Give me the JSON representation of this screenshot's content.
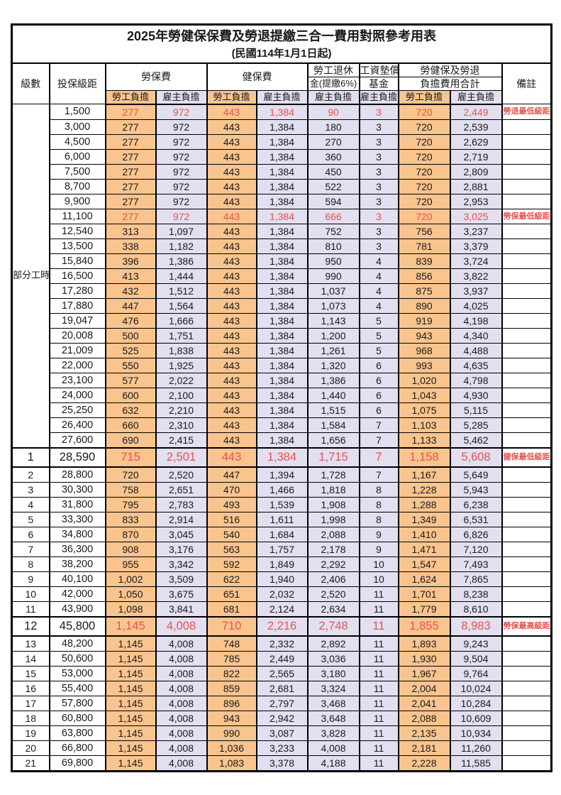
{
  "title": "2025年勞健保保費及勞退提繳三合一費用對照參考用表",
  "subtitle": "(民國114年1月1日起)",
  "header": {
    "level": "級數",
    "bracket": "投保級距",
    "labor_ins": "勞保費",
    "health_ins": "健保費",
    "pension_line1": "勞工退休",
    "pension_line2": "金(提繳6%)",
    "wage_fund_line1": "工資墊償",
    "wage_fund_line2": "基金",
    "total_line1": "勞健保及勞退",
    "total_line2": "負擔費用合計",
    "note": "備註",
    "employee": "勞工負擔",
    "employer": "雇主負擔"
  },
  "part_time": {
    "label": "部分工時",
    "span": 23
  },
  "colors": {
    "employee_bg": "#FAC48E",
    "employer_bg": "#E1DFF0",
    "highlight_text": "#E8544E",
    "border": "#000000"
  },
  "rows": [
    {
      "level": "",
      "bracket": "1,500",
      "li_emp": "277",
      "li_er": "972",
      "hi_emp": "443",
      "hi_er": "1,384",
      "pension_er": "90",
      "fund_er": "3",
      "total_emp": "720",
      "total_er": "2,449",
      "note": "勞退最低級距",
      "red": true
    },
    {
      "level": "",
      "bracket": "3,000",
      "li_emp": "277",
      "li_er": "972",
      "hi_emp": "443",
      "hi_er": "1,384",
      "pension_er": "180",
      "fund_er": "3",
      "total_emp": "720",
      "total_er": "2,539",
      "note": ""
    },
    {
      "level": "",
      "bracket": "4,500",
      "li_emp": "277",
      "li_er": "972",
      "hi_emp": "443",
      "hi_er": "1,384",
      "pension_er": "270",
      "fund_er": "3",
      "total_emp": "720",
      "total_er": "2,629",
      "note": ""
    },
    {
      "level": "",
      "bracket": "6,000",
      "li_emp": "277",
      "li_er": "972",
      "hi_emp": "443",
      "hi_er": "1,384",
      "pension_er": "360",
      "fund_er": "3",
      "total_emp": "720",
      "total_er": "2,719",
      "note": ""
    },
    {
      "level": "",
      "bracket": "7,500",
      "li_emp": "277",
      "li_er": "972",
      "hi_emp": "443",
      "hi_er": "1,384",
      "pension_er": "450",
      "fund_er": "3",
      "total_emp": "720",
      "total_er": "2,809",
      "note": ""
    },
    {
      "level": "",
      "bracket": "8,700",
      "li_emp": "277",
      "li_er": "972",
      "hi_emp": "443",
      "hi_er": "1,384",
      "pension_er": "522",
      "fund_er": "3",
      "total_emp": "720",
      "total_er": "2,881",
      "note": ""
    },
    {
      "level": "",
      "bracket": "9,900",
      "li_emp": "277",
      "li_er": "972",
      "hi_emp": "443",
      "hi_er": "1,384",
      "pension_er": "594",
      "fund_er": "3",
      "total_emp": "720",
      "total_er": "2,953",
      "note": ""
    },
    {
      "level": "",
      "bracket": "11,100",
      "li_emp": "277",
      "li_er": "972",
      "hi_emp": "443",
      "hi_er": "1,384",
      "pension_er": "666",
      "fund_er": "3",
      "total_emp": "720",
      "total_er": "3,025",
      "note": "勞保最低級距",
      "red": true
    },
    {
      "level": "",
      "bracket": "12,540",
      "li_emp": "313",
      "li_er": "1,097",
      "hi_emp": "443",
      "hi_er": "1,384",
      "pension_er": "752",
      "fund_er": "3",
      "total_emp": "756",
      "total_er": "3,237",
      "note": ""
    },
    {
      "level": "",
      "bracket": "13,500",
      "li_emp": "338",
      "li_er": "1,182",
      "hi_emp": "443",
      "hi_er": "1,384",
      "pension_er": "810",
      "fund_er": "3",
      "total_emp": "781",
      "total_er": "3,379",
      "note": ""
    },
    {
      "level": "",
      "bracket": "15,840",
      "li_emp": "396",
      "li_er": "1,386",
      "hi_emp": "443",
      "hi_er": "1,384",
      "pension_er": "950",
      "fund_er": "4",
      "total_emp": "839",
      "total_er": "3,724",
      "note": ""
    },
    {
      "level": "",
      "bracket": "16,500",
      "li_emp": "413",
      "li_er": "1,444",
      "hi_emp": "443",
      "hi_er": "1,384",
      "pension_er": "990",
      "fund_er": "4",
      "total_emp": "856",
      "total_er": "3,822",
      "note": ""
    },
    {
      "level": "",
      "bracket": "17,280",
      "li_emp": "432",
      "li_er": "1,512",
      "hi_emp": "443",
      "hi_er": "1,384",
      "pension_er": "1,037",
      "fund_er": "4",
      "total_emp": "875",
      "total_er": "3,937",
      "note": ""
    },
    {
      "level": "",
      "bracket": "17,880",
      "li_emp": "447",
      "li_er": "1,564",
      "hi_emp": "443",
      "hi_er": "1,384",
      "pension_er": "1,073",
      "fund_er": "4",
      "total_emp": "890",
      "total_er": "4,025",
      "note": ""
    },
    {
      "level": "",
      "bracket": "19,047",
      "li_emp": "476",
      "li_er": "1,666",
      "hi_emp": "443",
      "hi_er": "1,384",
      "pension_er": "1,143",
      "fund_er": "5",
      "total_emp": "919",
      "total_er": "4,198",
      "note": ""
    },
    {
      "level": "",
      "bracket": "20,008",
      "li_emp": "500",
      "li_er": "1,751",
      "hi_emp": "443",
      "hi_er": "1,384",
      "pension_er": "1,200",
      "fund_er": "5",
      "total_emp": "943",
      "total_er": "4,340",
      "note": ""
    },
    {
      "level": "",
      "bracket": "21,009",
      "li_emp": "525",
      "li_er": "1,838",
      "hi_emp": "443",
      "hi_er": "1,384",
      "pension_er": "1,261",
      "fund_er": "5",
      "total_emp": "968",
      "total_er": "4,488",
      "note": ""
    },
    {
      "level": "",
      "bracket": "22,000",
      "li_emp": "550",
      "li_er": "1,925",
      "hi_emp": "443",
      "hi_er": "1,384",
      "pension_er": "1,320",
      "fund_er": "6",
      "total_emp": "993",
      "total_er": "4,635",
      "note": ""
    },
    {
      "level": "",
      "bracket": "23,100",
      "li_emp": "577",
      "li_er": "2,022",
      "hi_emp": "443",
      "hi_er": "1,384",
      "pension_er": "1,386",
      "fund_er": "6",
      "total_emp": "1,020",
      "total_er": "4,798",
      "note": ""
    },
    {
      "level": "",
      "bracket": "24,000",
      "li_emp": "600",
      "li_er": "2,100",
      "hi_emp": "443",
      "hi_er": "1,384",
      "pension_er": "1,440",
      "fund_er": "6",
      "total_emp": "1,043",
      "total_er": "4,930",
      "note": ""
    },
    {
      "level": "",
      "bracket": "25,250",
      "li_emp": "632",
      "li_er": "2,210",
      "hi_emp": "443",
      "hi_er": "1,384",
      "pension_er": "1,515",
      "fund_er": "6",
      "total_emp": "1,075",
      "total_er": "5,115",
      "note": ""
    },
    {
      "level": "",
      "bracket": "26,400",
      "li_emp": "660",
      "li_er": "2,310",
      "hi_emp": "443",
      "hi_er": "1,384",
      "pension_er": "1,584",
      "fund_er": "7",
      "total_emp": "1,103",
      "total_er": "5,285",
      "note": ""
    },
    {
      "level": "",
      "bracket": "27,600",
      "li_emp": "690",
      "li_er": "2,415",
      "hi_emp": "443",
      "hi_er": "1,384",
      "pension_er": "1,656",
      "fund_er": "7",
      "total_emp": "1,133",
      "total_er": "5,462",
      "note": ""
    },
    {
      "level": "1",
      "bracket": "28,590",
      "li_emp": "715",
      "li_er": "2,501",
      "hi_emp": "443",
      "hi_er": "1,384",
      "pension_er": "1,715",
      "fund_er": "7",
      "total_emp": "1,158",
      "total_er": "5,608",
      "note": "健保最低級距",
      "red": true,
      "big": true
    },
    {
      "level": "2",
      "bracket": "28,800",
      "li_emp": "720",
      "li_er": "2,520",
      "hi_emp": "447",
      "hi_er": "1,394",
      "pension_er": "1,728",
      "fund_er": "7",
      "total_emp": "1,167",
      "total_er": "5,649",
      "note": ""
    },
    {
      "level": "3",
      "bracket": "30,300",
      "li_emp": "758",
      "li_er": "2,651",
      "hi_emp": "470",
      "hi_er": "1,466",
      "pension_er": "1,818",
      "fund_er": "8",
      "total_emp": "1,228",
      "total_er": "5,943",
      "note": ""
    },
    {
      "level": "4",
      "bracket": "31,800",
      "li_emp": "795",
      "li_er": "2,783",
      "hi_emp": "493",
      "hi_er": "1,539",
      "pension_er": "1,908",
      "fund_er": "8",
      "total_emp": "1,288",
      "total_er": "6,238",
      "note": ""
    },
    {
      "level": "5",
      "bracket": "33,300",
      "li_emp": "833",
      "li_er": "2,914",
      "hi_emp": "516",
      "hi_er": "1,611",
      "pension_er": "1,998",
      "fund_er": "8",
      "total_emp": "1,349",
      "total_er": "6,531",
      "note": ""
    },
    {
      "level": "6",
      "bracket": "34,800",
      "li_emp": "870",
      "li_er": "3,045",
      "hi_emp": "540",
      "hi_er": "1,684",
      "pension_er": "2,088",
      "fund_er": "9",
      "total_emp": "1,410",
      "total_er": "6,826",
      "note": ""
    },
    {
      "level": "7",
      "bracket": "36,300",
      "li_emp": "908",
      "li_er": "3,176",
      "hi_emp": "563",
      "hi_er": "1,757",
      "pension_er": "2,178",
      "fund_er": "9",
      "total_emp": "1,471",
      "total_er": "7,120",
      "note": ""
    },
    {
      "level": "8",
      "bracket": "38,200",
      "li_emp": "955",
      "li_er": "3,342",
      "hi_emp": "592",
      "hi_er": "1,849",
      "pension_er": "2,292",
      "fund_er": "10",
      "total_emp": "1,547",
      "total_er": "7,493",
      "note": ""
    },
    {
      "level": "9",
      "bracket": "40,100",
      "li_emp": "1,002",
      "li_er": "3,509",
      "hi_emp": "622",
      "hi_er": "1,940",
      "pension_er": "2,406",
      "fund_er": "10",
      "total_emp": "1,624",
      "total_er": "7,865",
      "note": ""
    },
    {
      "level": "10",
      "bracket": "42,000",
      "li_emp": "1,050",
      "li_er": "3,675",
      "hi_emp": "651",
      "hi_er": "2,032",
      "pension_er": "2,520",
      "fund_er": "11",
      "total_emp": "1,701",
      "total_er": "8,238",
      "note": ""
    },
    {
      "level": "11",
      "bracket": "43,900",
      "li_emp": "1,098",
      "li_er": "3,841",
      "hi_emp": "681",
      "hi_er": "2,124",
      "pension_er": "2,634",
      "fund_er": "11",
      "total_emp": "1,779",
      "total_er": "8,610",
      "note": ""
    },
    {
      "level": "12",
      "bracket": "45,800",
      "li_emp": "1,145",
      "li_er": "4,008",
      "hi_emp": "710",
      "hi_er": "2,216",
      "pension_er": "2,748",
      "fund_er": "11",
      "total_emp": "1,855",
      "total_er": "8,983",
      "note": "勞保最高級距",
      "red": true,
      "big": true
    },
    {
      "level": "13",
      "bracket": "48,200",
      "li_emp": "1,145",
      "li_er": "4,008",
      "hi_emp": "748",
      "hi_er": "2,332",
      "pension_er": "2,892",
      "fund_er": "11",
      "total_emp": "1,893",
      "total_er": "9,243",
      "note": ""
    },
    {
      "level": "14",
      "bracket": "50,600",
      "li_emp": "1,145",
      "li_er": "4,008",
      "hi_emp": "785",
      "hi_er": "2,449",
      "pension_er": "3,036",
      "fund_er": "11",
      "total_emp": "1,930",
      "total_er": "9,504",
      "note": ""
    },
    {
      "level": "15",
      "bracket": "53,000",
      "li_emp": "1,145",
      "li_er": "4,008",
      "hi_emp": "822",
      "hi_er": "2,565",
      "pension_er": "3,180",
      "fund_er": "11",
      "total_emp": "1,967",
      "total_er": "9,764",
      "note": ""
    },
    {
      "level": "16",
      "bracket": "55,400",
      "li_emp": "1,145",
      "li_er": "4,008",
      "hi_emp": "859",
      "hi_er": "2,681",
      "pension_er": "3,324",
      "fund_er": "11",
      "total_emp": "2,004",
      "total_er": "10,024",
      "note": ""
    },
    {
      "level": "17",
      "bracket": "57,800",
      "li_emp": "1,145",
      "li_er": "4,008",
      "hi_emp": "896",
      "hi_er": "2,797",
      "pension_er": "3,468",
      "fund_er": "11",
      "total_emp": "2,041",
      "total_er": "10,284",
      "note": ""
    },
    {
      "level": "18",
      "bracket": "60,800",
      "li_emp": "1,145",
      "li_er": "4,008",
      "hi_emp": "943",
      "hi_er": "2,942",
      "pension_er": "3,648",
      "fund_er": "11",
      "total_emp": "2,088",
      "total_er": "10,609",
      "note": ""
    },
    {
      "level": "19",
      "bracket": "63,800",
      "li_emp": "1,145",
      "li_er": "4,008",
      "hi_emp": "990",
      "hi_er": "3,087",
      "pension_er": "3,828",
      "fund_er": "11",
      "total_emp": "2,135",
      "total_er": "10,934",
      "note": ""
    },
    {
      "level": "20",
      "bracket": "66,800",
      "li_emp": "1,145",
      "li_er": "4,008",
      "hi_emp": "1,036",
      "hi_er": "3,233",
      "pension_er": "4,008",
      "fund_er": "11",
      "total_emp": "2,181",
      "total_er": "11,260",
      "note": ""
    },
    {
      "level": "21",
      "bracket": "69,800",
      "li_emp": "1,145",
      "li_er": "4,008",
      "hi_emp": "1,083",
      "hi_er": "3,378",
      "pension_er": "4,188",
      "fund_er": "11",
      "total_emp": "2,228",
      "total_er": "11,585",
      "note": ""
    }
  ]
}
